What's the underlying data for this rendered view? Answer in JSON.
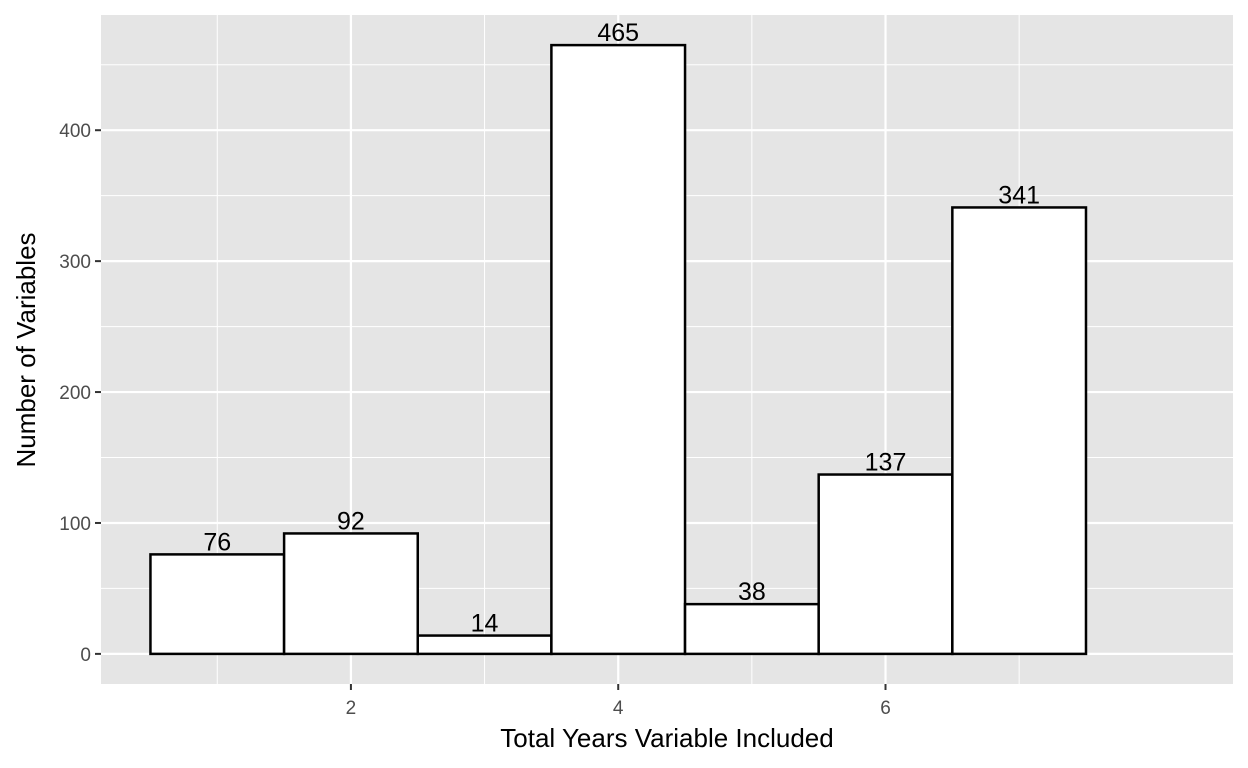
{
  "chart_data": {
    "type": "bar",
    "x": [
      1,
      2,
      3,
      4,
      5,
      6,
      7
    ],
    "values": [
      76,
      92,
      14,
      465,
      38,
      137,
      341
    ],
    "data_labels": [
      "76",
      "92",
      "14",
      "465",
      "38",
      "137",
      "341"
    ],
    "xlabel": "Total Years Variable Included",
    "ylabel": "Number of Variables",
    "x_ticks": [
      2,
      4,
      6
    ],
    "x_tick_labels": [
      "2",
      "4",
      "6"
    ],
    "y_ticks": [
      0,
      100,
      200,
      300,
      400
    ],
    "y_tick_labels": [
      "0",
      "100",
      "200",
      "300",
      "400"
    ],
    "xlim": [
      0.13,
      8.6
    ],
    "ylim": [
      -23,
      488
    ],
    "grid": true,
    "colors": {
      "panel_background": "#e5e5e5",
      "grid": "#ffffff",
      "bar_fill": "#ffffff",
      "bar_outline": "#000000",
      "tick_label": "#4d4d4d",
      "tick_mark": "#333333"
    }
  }
}
